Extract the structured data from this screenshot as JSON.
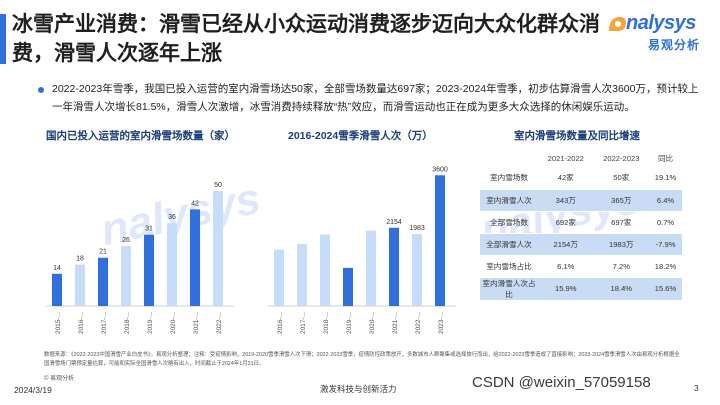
{
  "header": {
    "title": "冰雪产业消费：滑雪已经从小众运动消费逐步迈向大众化群众消费，滑雪人次逐年上涨",
    "logo_word": "nalysys",
    "logo_cn": "易观分析"
  },
  "summary": "2022-2023年雪季，我国已投入运营的室内滑雪场达50家，全部雪场数量达697家；2023-2024年雪季，初步估算滑雪人次3600万，预计较上一年滑雪人次增长81.5%，滑雪人次激增，冰雪消费持续释放“热”效应，而滑雪运动也正在成为更多大众选择的休闲娱乐运动。",
  "colors": {
    "accent": "#2f6fe0",
    "bar_dark": "#2f6fe0",
    "bar_light": "#c5dcfb",
    "table_shade": "#c9dcf6"
  },
  "chart_data": [
    {
      "type": "bar",
      "title": "国内已投入运营的室内滑雪场数量（家）",
      "categories": [
        "2015-...",
        "2016-...",
        "2017-...",
        "2018-...",
        "2019-...",
        "2020-...",
        "2021-...",
        "2022-..."
      ],
      "values": [
        14,
        18,
        21,
        26,
        31,
        36,
        42,
        50
      ],
      "highlight": [
        true,
        false,
        true,
        false,
        true,
        false,
        true,
        false
      ],
      "ylim": [
        0,
        60
      ]
    },
    {
      "type": "bar",
      "title": "2016-2024雪季滑雪人次（万）",
      "categories": [
        "2016-...",
        "2017-...",
        "2018-...",
        "2019-...",
        "2020-...",
        "2021-...",
        "2022-...",
        "2023-..."
      ],
      "values": [
        1550,
        1710,
        1970,
        1050,
        2076,
        2154,
        1983,
        3600
      ],
      "labels": [
        "",
        "",
        "",
        "",
        "",
        "2154",
        "1983",
        "3600"
      ],
      "highlight": [
        false,
        false,
        false,
        true,
        false,
        true,
        false,
        true
      ],
      "ylim": [
        0,
        3800
      ]
    },
    {
      "type": "table",
      "title": "室内滑雪场数量及同比增速",
      "columns": [
        "",
        "2021-2022",
        "2022-2023",
        "同比"
      ],
      "rows": [
        [
          "室内雪场数",
          "42家",
          "50家",
          "19.1%"
        ],
        [
          "室内滑雪人次",
          "343万",
          "365万",
          "6.4%"
        ],
        [
          "全部雪场数",
          "692家",
          "697家",
          "0.7%"
        ],
        [
          "全部滑雪人次",
          "2154万",
          "1983万",
          "-7.9%"
        ],
        [
          "室内雪场占比",
          "6.1%",
          "7.2%",
          "18.2%"
        ],
        [
          "室内滑雪人次占比",
          "15.9%",
          "18.4%",
          "15.6%"
        ]
      ]
    }
  ],
  "footer": {
    "footnote": "数据来源：《2022-2023中国滑雪产业白皮书》，易观分析整理；注释：受疫情影响，2019-2020雪季滑雪人次下滑；2022-2023雪季，疫情防控政策放开，多数城市人群聚集或选择旅行而出，给2022-2023雪季造成了直接影响；2023-2024雪季滑雪人次由易观分析根据全国滑雪场门票预定量估算，可能和实际全国滑雪人次略有出入，时间截止于2024年1月31日。",
    "copyright": "© 易观分析",
    "date": "2024/3/19",
    "slogan": "激发科技与创新活力",
    "page": "3"
  },
  "overlay": {
    "csdn": "CSDN @weixin_57059158"
  }
}
